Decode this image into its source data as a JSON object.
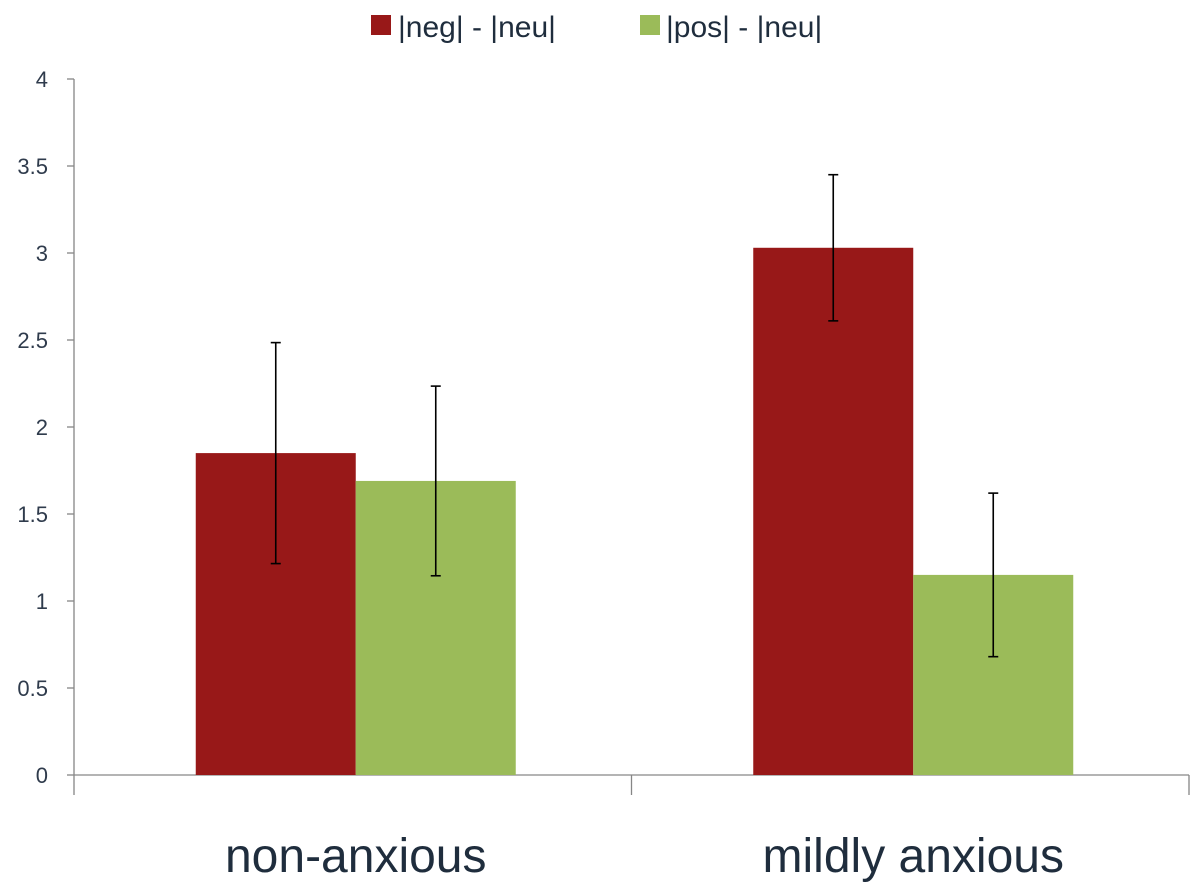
{
  "chart_data": {
    "type": "bar",
    "categories": [
      "non-anxious",
      "mildly anxious"
    ],
    "series": [
      {
        "name": "|neg| - |neu|",
        "color": "#981818",
        "values": [
          1.85,
          3.03
        ],
        "error": [
          0.635,
          0.42
        ]
      },
      {
        "name": "|pos| - |neu|",
        "color": "#9bbb59",
        "values": [
          1.69,
          1.15
        ],
        "error": [
          0.545,
          0.47
        ]
      }
    ],
    "ylim": [
      0,
      4
    ],
    "yticks": [
      "0",
      "0.5",
      "1",
      "1.5",
      "2",
      "2.5",
      "3",
      "3.5",
      "4"
    ],
    "legend_position": "top",
    "grid": false
  }
}
